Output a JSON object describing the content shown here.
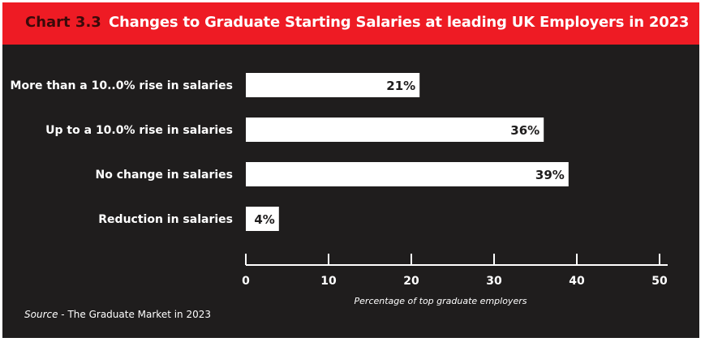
{
  "header": {
    "chart_number": "Chart 3.3",
    "title": "Changes to Graduate Starting Salaries at leading UK Employers in 2023"
  },
  "source": {
    "label": "Source",
    "separator": " - ",
    "text": "The Graduate Market in 2023"
  },
  "colors": {
    "header_bg": "#ee1b24",
    "chart_bg": "#1f1d1d",
    "bar_fill": "#ffffff",
    "text": "#ffffff",
    "value_text": "#1f1d1d"
  },
  "chart_data": {
    "type": "bar",
    "orientation": "horizontal",
    "categories": [
      "More than a 10..0% rise in salaries",
      "Up to a 10.0% rise in salaries",
      "No change in salaries",
      "Reduction in salaries"
    ],
    "values": [
      21,
      36,
      39,
      4
    ],
    "value_labels": [
      "21%",
      "36%",
      "39%",
      "4%"
    ],
    "xlabel": "Percentage of top graduate employers",
    "xlim": [
      0,
      50
    ],
    "xticks": [
      0,
      10,
      20,
      30,
      40,
      50
    ],
    "grid": false
  }
}
